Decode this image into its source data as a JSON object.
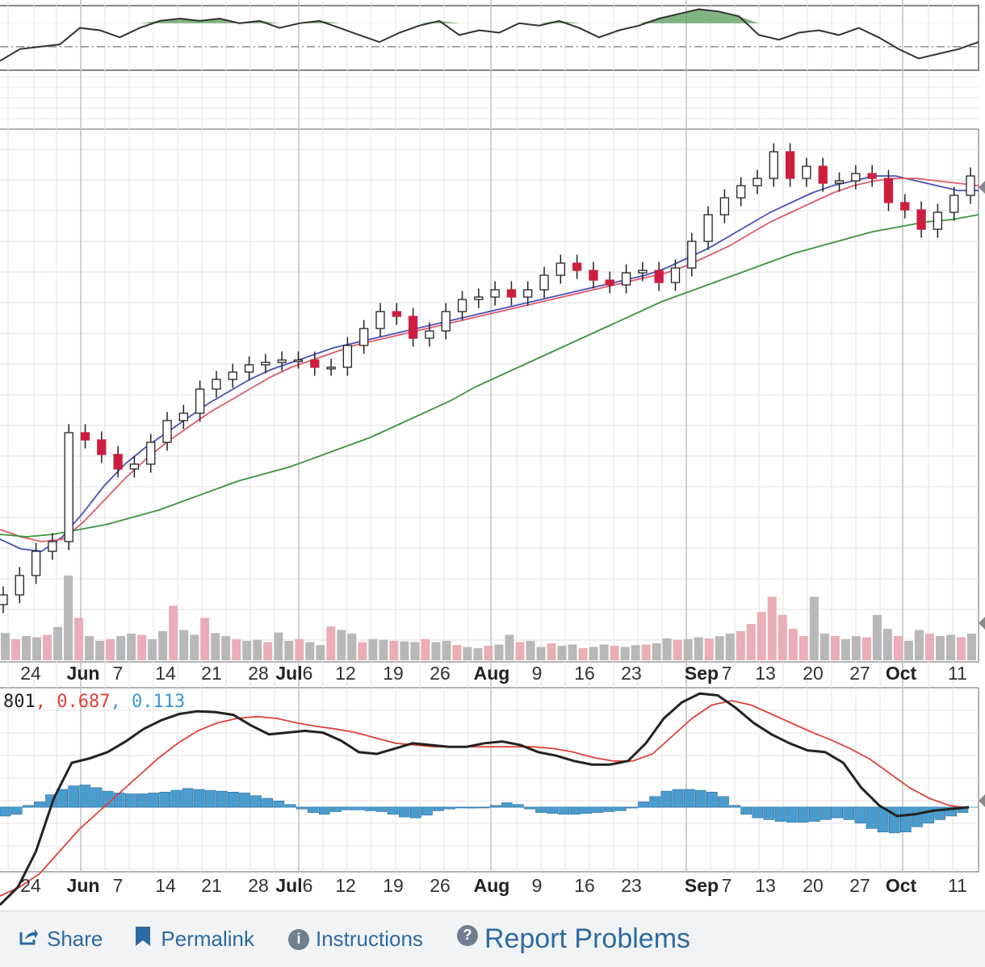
{
  "chart_data": [
    {
      "type": "line",
      "panel": "rsi",
      "series": [
        {
          "values": [
            38,
            48,
            50,
            52,
            66,
            64,
            58,
            66,
            72,
            74,
            72,
            74,
            70,
            72,
            66,
            70,
            72,
            66,
            60,
            54,
            62,
            68,
            72,
            60,
            64,
            62,
            70,
            68,
            72,
            66,
            58,
            64,
            68,
            74,
            78,
            82,
            80,
            76,
            60,
            56,
            62,
            64,
            60,
            66,
            58,
            48,
            40,
            44,
            48,
            54
          ]
        }
      ],
      "reference_lines": [
        70,
        50
      ],
      "color": "#333333",
      "overbought_fill": "#5a9a5a"
    },
    {
      "type": "candlestick",
      "panel": "price",
      "x_ticks": [
        {
          "label": "24",
          "major": false
        },
        {
          "label": "Jun",
          "major": true
        },
        {
          "label": "7",
          "major": false
        },
        {
          "label": "14",
          "major": false
        },
        {
          "label": "21",
          "major": false
        },
        {
          "label": "28",
          "major": false
        },
        {
          "label": "Jul",
          "major": true
        },
        {
          "label": "6",
          "major": false
        },
        {
          "label": "12",
          "major": false
        },
        {
          "label": "19",
          "major": false
        },
        {
          "label": "26",
          "major": false
        },
        {
          "label": "Aug",
          "major": true
        },
        {
          "label": "9",
          "major": false
        },
        {
          "label": "16",
          "major": false
        },
        {
          "label": "23",
          "major": false
        },
        {
          "label": "Sep",
          "major": true
        },
        {
          "label": "7",
          "major": false
        },
        {
          "label": "13",
          "major": false
        },
        {
          "label": "20",
          "major": false
        },
        {
          "label": "27",
          "major": false
        },
        {
          "label": "Oct",
          "major": true
        },
        {
          "label": "11",
          "major": false
        }
      ],
      "close": [
        1.1,
        1.9,
        2.9,
        3.3,
        7.8,
        7.5,
        6.9,
        6.3,
        6.5,
        7.4,
        8.3,
        8.6,
        9.6,
        10.0,
        10.3,
        10.6,
        10.7,
        10.8,
        10.8,
        10.5,
        10.5,
        11.4,
        12.1,
        12.8,
        12.6,
        11.7,
        12.0,
        12.8,
        13.3,
        13.4,
        13.7,
        13.4,
        13.7,
        14.3,
        14.8,
        14.5,
        14.1,
        13.9,
        14.4,
        14.5,
        14.0,
        14.6,
        15.7,
        16.8,
        17.5,
        18.0,
        18.3,
        19.4,
        18.3,
        18.8,
        18.1,
        18.2,
        18.5,
        18.3,
        17.3,
        17.0,
        16.2,
        16.9,
        17.6,
        18.4
      ],
      "colors": {
        "up": "#ffffff",
        "down": "#cc1f3f",
        "outline": "#222222"
      },
      "moving_averages": [
        {
          "color": "#4a52b8",
          "values": [
            3.4,
            3.0,
            2.9,
            3.5,
            4.5,
            5.6,
            6.5,
            7.2,
            7.8,
            8.4,
            9.0,
            9.5,
            10.0,
            10.4,
            10.7,
            11.0,
            11.3,
            11.5,
            11.7,
            11.9,
            12.1,
            12.3,
            12.5,
            12.7,
            12.9,
            13.1,
            13.3,
            13.5,
            13.7,
            13.9,
            14.1,
            14.3,
            14.6,
            15.0,
            15.4,
            15.9,
            16.4,
            16.9,
            17.3,
            17.7,
            18.0,
            18.2,
            18.4,
            18.4,
            18.2,
            18.0,
            17.8,
            17.8
          ]
        },
        {
          "color": "#e05a6a",
          "values": [
            3.8,
            3.5,
            3.3,
            3.4,
            4.1,
            5.0,
            5.9,
            6.7,
            7.4,
            8.0,
            8.6,
            9.1,
            9.6,
            10.1,
            10.5,
            10.8,
            11.1,
            11.4,
            11.6,
            11.8,
            12.0,
            12.2,
            12.4,
            12.6,
            12.8,
            13.0,
            13.2,
            13.4,
            13.6,
            13.8,
            14.0,
            14.2,
            14.4,
            14.7,
            15.1,
            15.5,
            16.0,
            16.5,
            16.9,
            17.3,
            17.7,
            18.0,
            18.2,
            18.3,
            18.3,
            18.2,
            18.1,
            18.0
          ]
        },
        {
          "color": "#3c953c",
          "values": [
            3.6,
            3.5,
            3.6,
            3.8,
            4.0,
            4.3,
            4.6,
            5.0,
            5.4,
            5.8,
            6.1,
            6.4,
            6.8,
            7.2,
            7.6,
            8.1,
            8.6,
            9.1,
            9.7,
            10.2,
            10.7,
            11.2,
            11.7,
            12.2,
            12.7,
            13.2,
            13.6,
            14.0,
            14.4,
            14.8,
            15.2,
            15.5,
            15.8,
            16.1,
            16.3,
            16.5,
            16.6,
            16.8
          ]
        }
      ]
    },
    {
      "type": "bar",
      "panel": "volume",
      "values": [
        45,
        35,
        40,
        38,
        42,
        55,
        140,
        70,
        40,
        32,
        35,
        40,
        44,
        42,
        35,
        48,
        90,
        50,
        42,
        70,
        45,
        40,
        35,
        32,
        34,
        30,
        46,
        32,
        35,
        30,
        25,
        56,
        50,
        44,
        30,
        35,
        34,
        32,
        31,
        30,
        35,
        30,
        32,
        25,
        22,
        20,
        24,
        26,
        42,
        30,
        32,
        22,
        28,
        24,
        26,
        20,
        22,
        26,
        24,
        22,
        25,
        26,
        28,
        36,
        34,
        35,
        38,
        36,
        40,
        44,
        48,
        60,
        80,
        105,
        75,
        52,
        40,
        105,
        44,
        40,
        35,
        40,
        38,
        75,
        52,
        40,
        32,
        50,
        44,
        40,
        42,
        38,
        44
      ],
      "colors": {
        "up": "#b8b8b8",
        "down": "#e9aeb6"
      }
    },
    {
      "type": "line",
      "panel": "macd",
      "readout": [
        "801",
        "0.687",
        "0.113"
      ],
      "readout_colors": [
        "#222222",
        "#e0413a",
        "#3a9ad9"
      ],
      "series": [
        {
          "color": "#222222",
          "values": [
            -1.1,
            -0.9,
            -0.5,
            0.1,
            0.5,
            0.55,
            0.62,
            0.74,
            0.88,
            0.98,
            1.05,
            1.08,
            1.07,
            1.04,
            0.92,
            0.82,
            0.84,
            0.86,
            0.84,
            0.75,
            0.62,
            0.6,
            0.66,
            0.72,
            0.7,
            0.68,
            0.68,
            0.72,
            0.74,
            0.7,
            0.62,
            0.58,
            0.52,
            0.48,
            0.48,
            0.52,
            0.72,
            1.0,
            1.18,
            1.28,
            1.26,
            1.12,
            0.95,
            0.82,
            0.72,
            0.64,
            0.62,
            0.5,
            0.22,
            0.02,
            -0.1,
            -0.08,
            -0.04,
            -0.02,
            0.0
          ]
        },
        {
          "color": "#e0413a",
          "values": [
            -1.0,
            -0.9,
            -0.75,
            -0.5,
            -0.25,
            -0.05,
            0.15,
            0.35,
            0.55,
            0.72,
            0.86,
            0.95,
            1.0,
            1.02,
            1.0,
            0.95,
            0.91,
            0.88,
            0.84,
            0.78,
            0.72,
            0.7,
            0.68,
            0.68,
            0.68,
            0.68,
            0.68,
            0.68,
            0.66,
            0.62,
            0.56,
            0.52,
            0.52,
            0.6,
            0.8,
            1.0,
            1.15,
            1.2,
            1.15,
            1.05,
            0.95,
            0.85,
            0.76,
            0.66,
            0.54,
            0.38,
            0.22,
            0.1,
            0.02,
            -0.01
          ]
        }
      ],
      "histogram": {
        "color": "#4a9ccf",
        "values": [
          -0.1,
          -0.08,
          0.02,
          0.06,
          0.14,
          0.2,
          0.24,
          0.25,
          0.22,
          0.18,
          0.16,
          0.15,
          0.15,
          0.16,
          0.17,
          0.19,
          0.21,
          0.2,
          0.19,
          0.18,
          0.17,
          0.16,
          0.13,
          0.1,
          0.07,
          0.03,
          -0.02,
          -0.06,
          -0.08,
          -0.05,
          -0.03,
          -0.03,
          -0.04,
          -0.05,
          -0.08,
          -0.11,
          -0.12,
          -0.09,
          -0.04,
          -0.02,
          0.0,
          -0.01,
          0.0,
          0.02,
          0.05,
          0.03,
          -0.02,
          -0.06,
          -0.07,
          -0.08,
          -0.08,
          -0.07,
          -0.06,
          -0.05,
          -0.04,
          -0.01,
          0.06,
          0.12,
          0.18,
          0.2,
          0.2,
          0.19,
          0.17,
          0.12,
          0.02,
          -0.08,
          -0.12,
          -0.14,
          -0.16,
          -0.17,
          -0.17,
          -0.16,
          -0.14,
          -0.12,
          -0.14,
          -0.18,
          -0.24,
          -0.28,
          -0.29,
          -0.28,
          -0.22,
          -0.18,
          -0.14,
          -0.1,
          -0.06
        ]
      }
    }
  ],
  "footer": {
    "share_label": "Share",
    "permalink_label": "Permalink",
    "instructions_label": "Instructions",
    "report_label": "Report Problems"
  }
}
